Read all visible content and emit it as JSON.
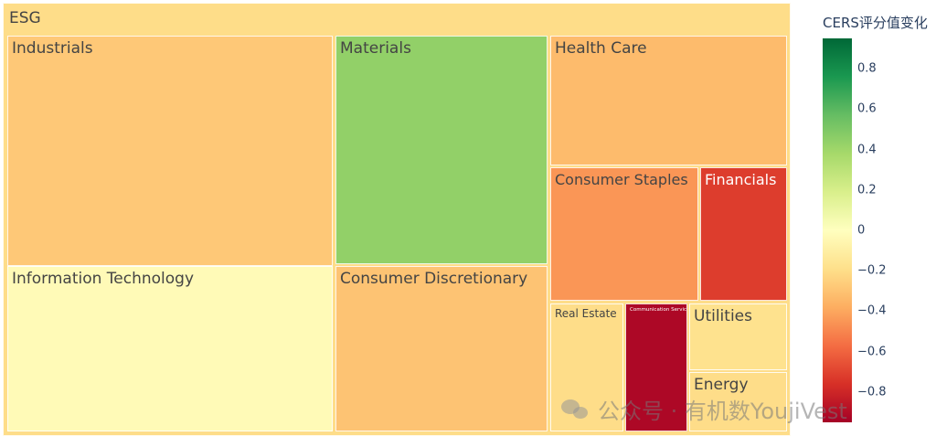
{
  "chart_data": {
    "type": "treemap",
    "root": {
      "label": "ESG",
      "value": -0.2
    },
    "colorbar": {
      "title": "CERS评分值变化",
      "range": [
        -0.95,
        0.95
      ],
      "ticks": [
        0.8,
        0.6,
        0.4,
        0.2,
        0,
        -0.2,
        -0.4,
        -0.6,
        -0.8
      ],
      "tick_labels": [
        "0.8",
        "0.6",
        "0.4",
        "0.2",
        "0",
        "−0.2",
        "−0.4",
        "−0.6",
        "−0.8"
      ],
      "colorscale": [
        "#a50026",
        "#d73027",
        "#f46d43",
        "#fdae61",
        "#fee08b",
        "#ffffbf",
        "#d9ef8b",
        "#a6d96a",
        "#66bd63",
        "#1a9850",
        "#006837"
      ]
    },
    "sectors": [
      {
        "label": "Industrials",
        "value": -0.28
      },
      {
        "label": "Information Technology",
        "value": -0.03
      },
      {
        "label": "Materials",
        "value": 0.44
      },
      {
        "label": "Consumer Discretionary",
        "value": -0.3
      },
      {
        "label": "Health Care",
        "value": -0.33
      },
      {
        "label": "Consumer Staples",
        "value": -0.45
      },
      {
        "label": "Financials",
        "value": -0.72
      },
      {
        "label": "Real Estate",
        "value": -0.2
      },
      {
        "label": "Communication Services",
        "value": -0.92
      },
      {
        "label": "Utilities",
        "value": -0.18
      },
      {
        "label": "Energy",
        "value": -0.2
      }
    ]
  },
  "watermark": {
    "text": "公众号 · 有机数YoujiVest",
    "icon": "wechat-icon"
  }
}
